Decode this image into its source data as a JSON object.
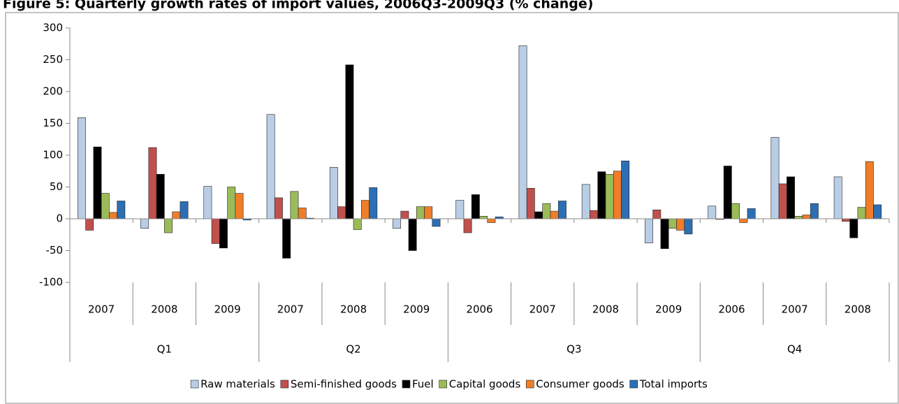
{
  "chart_data": {
    "type": "bar",
    "title": "Figure 5: Quarterly growth rates of import values, 2006Q3-2009Q3 (% change)",
    "category_groups": [
      {
        "name": "Q1",
        "categories": [
          "2007",
          "2008",
          "2009"
        ]
      },
      {
        "name": "Q2",
        "categories": [
          "2007",
          "2008",
          "2009"
        ]
      },
      {
        "name": "Q3",
        "categories": [
          "2006",
          "2007",
          "2008",
          "2009"
        ]
      },
      {
        "name": "Q4",
        "categories": [
          "2006",
          "2007",
          "2008"
        ]
      }
    ],
    "series": [
      {
        "name": "Raw materials",
        "color": "#b9cde5",
        "values": [
          159,
          -15,
          51,
          164,
          81,
          -15,
          29,
          272,
          54,
          -38,
          20,
          128,
          66
        ]
      },
      {
        "name": "Semi-finished goods",
        "color": "#c0504d",
        "values": [
          -18,
          112,
          -39,
          33,
          19,
          12,
          -22,
          48,
          13,
          14,
          -1,
          55,
          -4
        ]
      },
      {
        "name": "Fuel",
        "color": "#000000",
        "values": [
          113,
          70,
          -46,
          -62,
          242,
          -50,
          38,
          11,
          74,
          -47,
          83,
          66,
          -30
        ]
      },
      {
        "name": "Capital goods",
        "color": "#9bbb59",
        "values": [
          40,
          -22,
          50,
          43,
          -17,
          19,
          4,
          24,
          70,
          -15,
          24,
          4,
          18
        ]
      },
      {
        "name": "Consumer goods",
        "color": "#f07d28",
        "values": [
          10,
          11,
          40,
          17,
          29,
          19,
          -6,
          12,
          75,
          -18,
          -6,
          6,
          90
        ]
      },
      {
        "name": "Total imports",
        "color": "#2c6fb4",
        "values": [
          28,
          27,
          -2,
          1,
          49,
          -12,
          3,
          28,
          91,
          -24,
          16,
          24,
          22
        ]
      }
    ],
    "ylim": [
      -100,
      300
    ],
    "yticks": [
      -100,
      -50,
      0,
      50,
      100,
      150,
      200,
      250,
      300
    ],
    "grid": false,
    "legend": "bottom"
  }
}
